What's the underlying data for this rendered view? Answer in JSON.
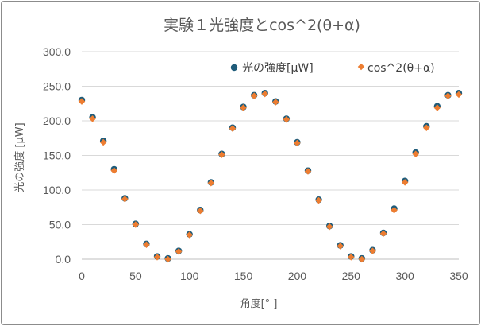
{
  "chart_data": {
    "type": "scatter",
    "title": "実験１光強度とcos^2(θ+α)",
    "xlabel": "角度[° ]",
    "ylabel": "光の強度 [μW]",
    "xlim": [
      0,
      350
    ],
    "ylim": [
      0,
      300
    ],
    "xticks": [
      "0",
      "50",
      "100",
      "150",
      "200",
      "250",
      "300",
      "350"
    ],
    "yticks": [
      "0.0",
      "50.0",
      "100.0",
      "150.0",
      "200.0",
      "250.0",
      "300.0"
    ],
    "grid": true,
    "legend_position": "top-right",
    "x": [
      0,
      10,
      20,
      30,
      40,
      50,
      60,
      70,
      80,
      90,
      100,
      110,
      120,
      130,
      140,
      150,
      160,
      170,
      180,
      190,
      200,
      210,
      220,
      230,
      240,
      250,
      260,
      270,
      280,
      290,
      300,
      310,
      320,
      330,
      340,
      350
    ],
    "series": [
      {
        "name": "光の強度[μW]",
        "color": "#1f5c7a",
        "marker": "circle",
        "values": [
          230,
          205,
          171,
          130,
          88,
          51,
          22,
          4,
          1,
          12,
          36,
          71,
          111,
          152,
          190,
          220,
          237,
          240,
          228,
          203,
          169,
          128,
          86,
          48,
          20,
          4,
          1,
          13,
          38,
          73,
          113,
          154,
          192,
          221,
          237,
          240
        ]
      },
      {
        "name": "cos^2(θ+α)",
        "color": "#ed7d31",
        "marker": "diamond",
        "values": [
          228,
          203,
          169,
          128,
          87,
          50,
          21,
          3,
          0,
          11,
          35,
          70,
          110,
          151,
          189,
          219,
          236,
          239,
          227,
          202,
          168,
          127,
          85,
          47,
          19,
          3,
          0,
          12,
          37,
          71,
          111,
          152,
          190,
          219,
          236,
          238
        ]
      }
    ]
  }
}
